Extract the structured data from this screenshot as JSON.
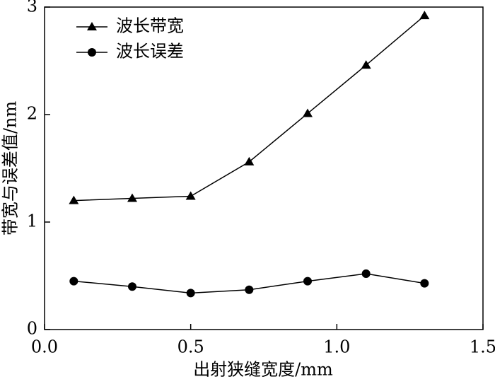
{
  "chart_data": {
    "type": "line",
    "xlabel": "出射狭缝宽度/mm",
    "ylabel": "带宽与误差值/nm",
    "x": [
      0.1,
      0.3,
      0.5,
      0.7,
      0.9,
      1.1,
      1.3
    ],
    "series": [
      {
        "name": "波长带宽",
        "color": "#000000",
        "marker": "triangle",
        "values": [
          1.2,
          1.22,
          1.24,
          1.56,
          2.01,
          2.46,
          2.92
        ]
      },
      {
        "name": "波长误差",
        "color": "#000000",
        "marker": "circle",
        "values": [
          0.45,
          0.4,
          0.34,
          0.37,
          0.45,
          0.52,
          0.43
        ]
      }
    ],
    "xlim": [
      0,
      1.5
    ],
    "xticks": [
      {
        "value": 0,
        "label": "0.0"
      },
      0.5,
      {
        "value": 1,
        "label": "1.0"
      },
      1.5
    ],
    "ylim": [
      0,
      3
    ],
    "yticks": [
      0,
      1,
      2,
      3
    ],
    "legend": "upper left",
    "grid": false
  }
}
